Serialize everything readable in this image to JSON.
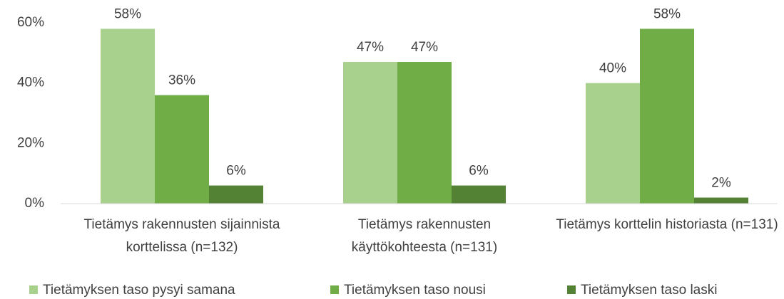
{
  "chart_data": {
    "type": "bar",
    "categories": [
      "Tietämys rakennusten sijainnista korttelissa (n=132)",
      "Tietämys rakennusten käyttökohteesta (n=131)",
      "Tietämys korttelin historiasta (n=131)"
    ],
    "series": [
      {
        "name": "Tietämyksen taso pysyi samana",
        "color": "#a9d18e",
        "values": [
          58,
          47,
          40
        ],
        "value_labels": [
          "58%",
          "47%",
          "40%"
        ]
      },
      {
        "name": "Tietämyksen taso nousi",
        "color": "#70ad47",
        "values": [
          36,
          47,
          58
        ],
        "value_labels": [
          "36%",
          "47%",
          "58%"
        ]
      },
      {
        "name": "Tietämyksen taso laski",
        "color": "#548235",
        "values": [
          6,
          6,
          2
        ],
        "value_labels": [
          "6%",
          "6%",
          "2%"
        ]
      }
    ],
    "ylim": [
      0,
      60
    ],
    "yticks": [
      {
        "value": 0,
        "label": "0%"
      },
      {
        "value": 20,
        "label": "20%"
      },
      {
        "value": 40,
        "label": "40%"
      },
      {
        "value": 60,
        "label": "60%"
      }
    ],
    "grid": false,
    "legend": "bottom"
  }
}
